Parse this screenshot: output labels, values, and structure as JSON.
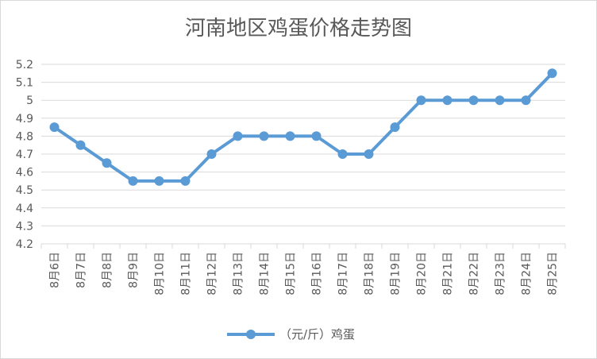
{
  "chart_data": {
    "type": "line",
    "title": "河南地区鸡蛋价格走势图",
    "categories": [
      "8月6日",
      "8月7日",
      "8月8日",
      "8月9日",
      "8月10日",
      "8月11日",
      "8月12日",
      "8月13日",
      "8月14日",
      "8月15日",
      "8月16日",
      "8月17日",
      "8月18日",
      "8月19日",
      "8月20日",
      "8月21日",
      "8月22日",
      "8月23日",
      "8月24日",
      "8月25日"
    ],
    "series": [
      {
        "name": "（元/斤）鸡蛋",
        "values": [
          4.85,
          4.75,
          4.65,
          4.55,
          4.55,
          4.55,
          4.7,
          4.8,
          4.8,
          4.8,
          4.8,
          4.7,
          4.7,
          4.85,
          5.0,
          5.0,
          5.0,
          5.0,
          5.0,
          5.15
        ]
      }
    ],
    "yticks": [
      "4.2",
      "4.3",
      "4.4",
      "4.5",
      "4.6",
      "4.7",
      "4.8",
      "4.9",
      "5",
      "5.1",
      "5.2"
    ],
    "ylim": [
      4.2,
      5.2
    ],
    "grid": true,
    "legend": "bottom",
    "colors": {
      "line": "#5b9bd5",
      "grid": "#d9d9d9",
      "text": "#595959"
    }
  }
}
